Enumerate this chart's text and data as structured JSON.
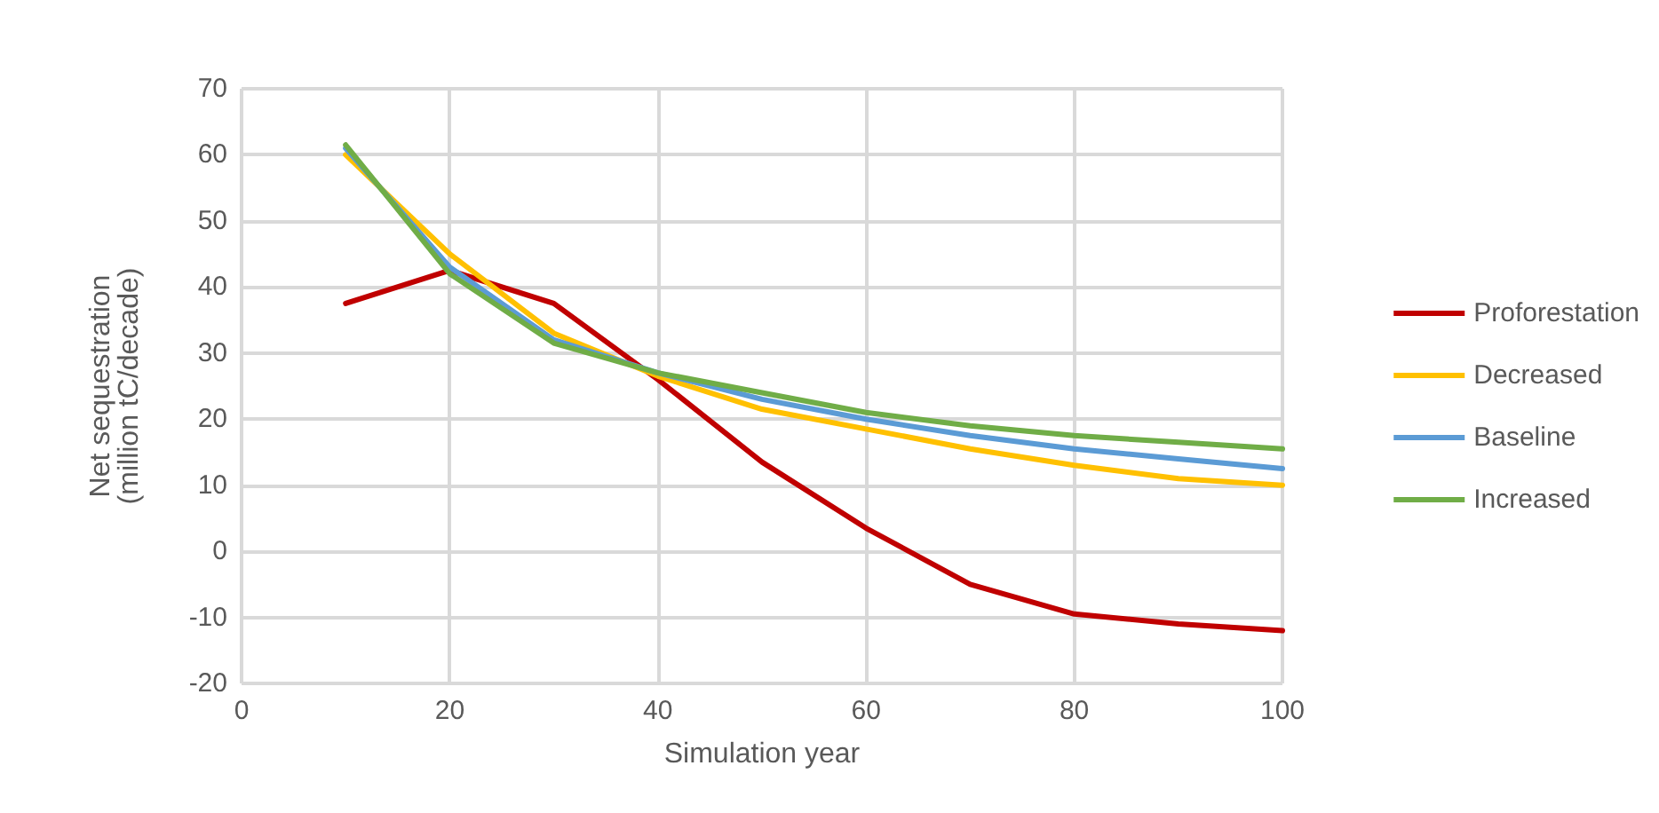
{
  "chart_data": {
    "type": "line",
    "xlabel": "Simulation year",
    "ylabel": "Net sequestration\n(million tC/decade)",
    "x": [
      10,
      20,
      30,
      40,
      50,
      60,
      70,
      80,
      90,
      100
    ],
    "series": [
      {
        "name": "Proforestation",
        "color": "#c00000",
        "values": [
          37.5,
          42.5,
          37.5,
          26,
          13.5,
          3.5,
          -5,
          -9.5,
          -11,
          -12
        ]
      },
      {
        "name": "Decreased",
        "color": "#ffc000",
        "values": [
          60,
          45,
          33,
          26.5,
          21.5,
          18.5,
          15.5,
          13,
          11,
          10
        ]
      },
      {
        "name": "Baseline",
        "color": "#5b9bd5",
        "values": [
          61,
          43,
          32,
          27,
          23,
          20,
          17.5,
          15.5,
          14,
          12.5
        ]
      },
      {
        "name": "Increased",
        "color": "#70ad47",
        "values": [
          61.5,
          42,
          31.5,
          27,
          24,
          21,
          19,
          17.5,
          16.5,
          15.5
        ]
      }
    ],
    "xlim": [
      0,
      100
    ],
    "xticks": [
      0,
      20,
      40,
      60,
      80,
      100
    ],
    "ylim": [
      -20,
      70
    ],
    "yticks": [
      -20,
      -10,
      0,
      10,
      20,
      30,
      40,
      50,
      60,
      70
    ],
    "grid": true,
    "legend": "right",
    "marker": "none",
    "line_style": "solid"
  }
}
